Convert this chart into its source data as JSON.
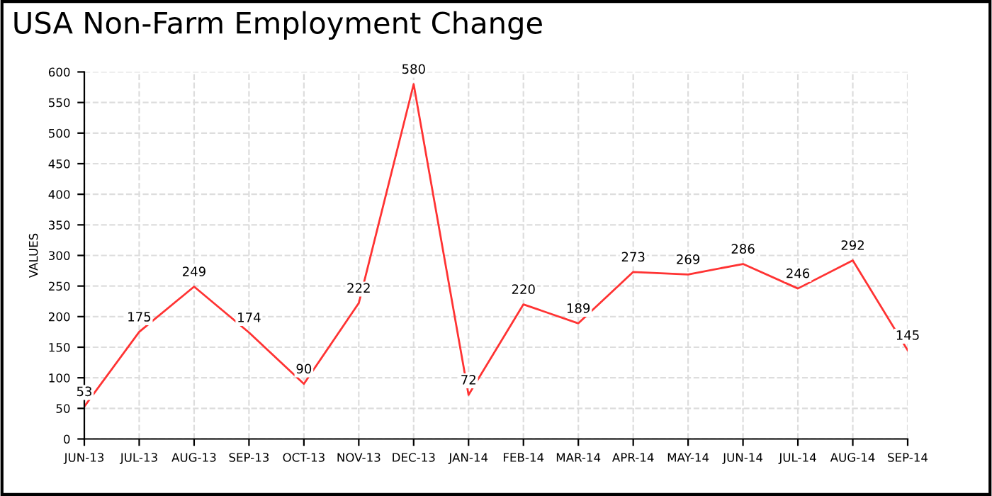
{
  "chart_data": {
    "type": "line",
    "title": "USA Non-Farm Employment Change",
    "ylabel": "VALUES",
    "categories": [
      "JUN-13",
      "JUL-13",
      "AUG-13",
      "SEP-13",
      "OCT-13",
      "NOV-13",
      "DEC-13",
      "JAN-14",
      "FEB-14",
      "MAR-14",
      "APR-14",
      "MAY-14",
      "JUN-14",
      "JUL-14",
      "AUG-14",
      "SEP-14"
    ],
    "series": [
      {
        "color": "#ff3333",
        "values": [
          53,
          175,
          249,
          174,
          90,
          222,
          580,
          72,
          220,
          189,
          273,
          269,
          286,
          246,
          292,
          145
        ]
      }
    ],
    "ylim": [
      0,
      600
    ],
    "yticks": [
      0,
      50,
      100,
      150,
      200,
      250,
      300,
      350,
      400,
      450,
      500,
      550,
      600
    ],
    "grid": true,
    "data_labels": true,
    "marker": "none",
    "line_style": "solid"
  }
}
